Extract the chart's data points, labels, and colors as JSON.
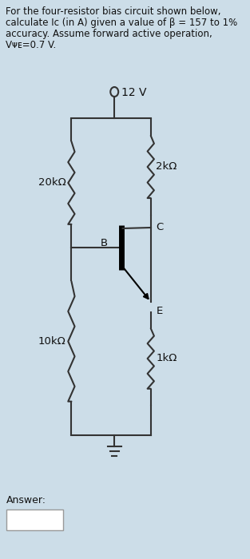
{
  "background_color": "#ccdde8",
  "title_line1": "For the four-resistor bias circuit shown below,",
  "title_line2": "calculate Iᴄ (in A) given a value of β = 157 to 1%",
  "title_line3": "accuracy. Assume forward active operation,",
  "title_line4": "Vᴪᴇ=0.7 V.",
  "supply_voltage": "12 V",
  "r1_label": "20kΩ",
  "r2_label": "10kΩ",
  "rc_label": "2kΩ",
  "re_label": "1kΩ",
  "b_label": "B",
  "c_label": "C",
  "e_label": "E",
  "answer_label": "Answer:",
  "line_color": "#333333",
  "text_color": "#111111",
  "answer_box_color": "#ffffff",
  "lw": 1.5
}
